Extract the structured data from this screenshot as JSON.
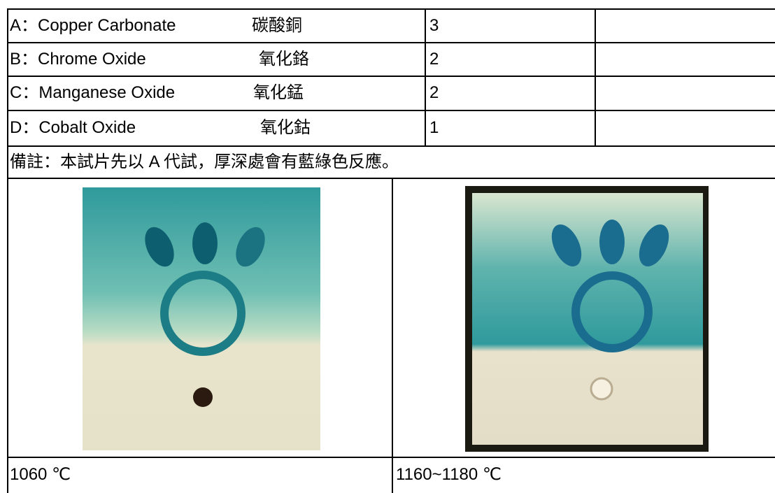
{
  "rows": [
    {
      "name": "A：Copper Carbonate",
      "chinese": "碳酸銅",
      "amount": "3"
    },
    {
      "name": "B：Chrome Oxide",
      "chinese": "氧化鉻",
      "amount": "2"
    },
    {
      "name": "C：Manganese Oxide",
      "chinese": "氧化錳",
      "amount": "2"
    },
    {
      "name": "D：Cobalt Oxide",
      "chinese": "氧化鈷",
      "amount": "1"
    }
  ],
  "note": "備註：本試片先以 A 代試，厚深處會有藍綠色反應。",
  "captions": [
    "1060 ℃",
    "1160~1180 ℃"
  ]
}
